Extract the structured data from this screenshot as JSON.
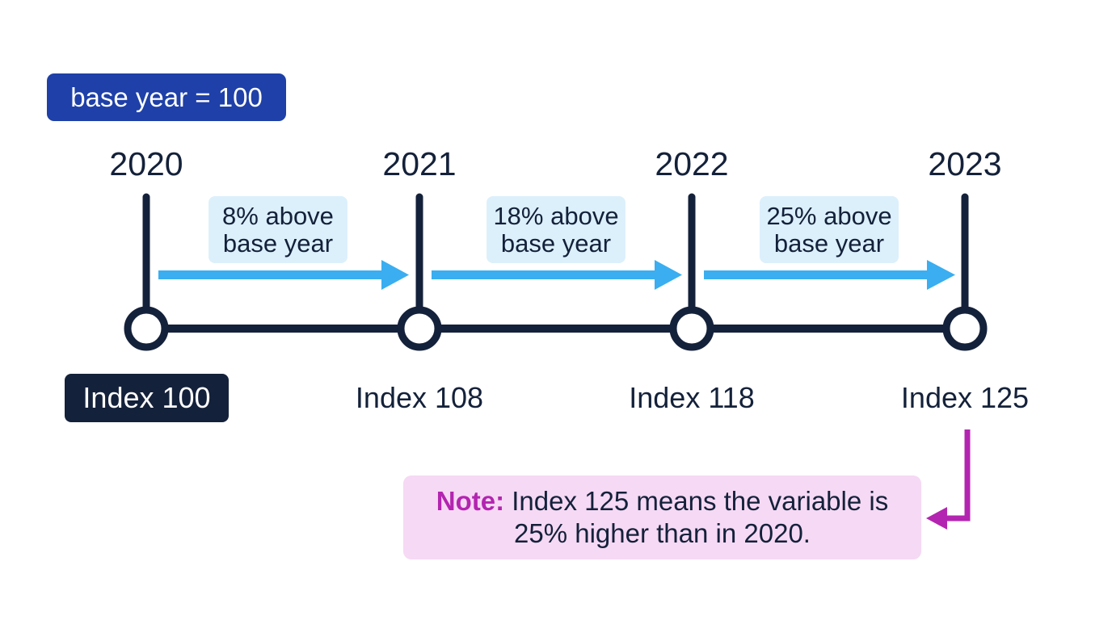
{
  "badge": {
    "label": "base year = 100"
  },
  "timeline": {
    "points": [
      {
        "year": "2020",
        "index_label": "Index 100",
        "index_value": 100
      },
      {
        "year": "2021",
        "index_label": "Index 108",
        "index_value": 108
      },
      {
        "year": "2022",
        "index_label": "Index 118",
        "index_value": 118
      },
      {
        "year": "2023",
        "index_label": "Index 125",
        "index_value": 125
      }
    ],
    "changes": [
      {
        "line1": "8% above",
        "line2": "base year"
      },
      {
        "line1": "18% above",
        "line2": "base year"
      },
      {
        "line1": "25% above",
        "line2": "base year"
      }
    ]
  },
  "note": {
    "label": "Note:",
    "line1": "Index 125 means the variable is",
    "line2": "25% higher than in 2020."
  },
  "colors": {
    "dark": "#14213a",
    "badge_blue": "#1e40a8",
    "arrow_blue": "#3aaef0",
    "change_bg": "#dcf0fb",
    "note_bg": "#f6d9f4",
    "note_accent": "#b325b0"
  }
}
